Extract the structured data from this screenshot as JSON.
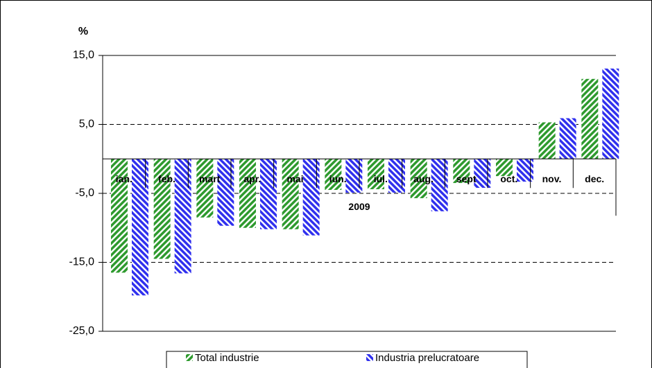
{
  "chart_data": {
    "type": "bar",
    "y_label": "%",
    "x_label": "2009",
    "categories": [
      "ian.",
      "feb.",
      "mart",
      "apr.",
      "mai",
      "iun.",
      "iul.",
      "aug.",
      "sept",
      "oct.",
      "nov.",
      "dec."
    ],
    "series": [
      {
        "name": "Total industrie",
        "color": "#2e9a2e",
        "values": [
          -16.5,
          -14.5,
          -8.5,
          -10.0,
          -10.2,
          -4.5,
          -4.4,
          -5.7,
          -3.5,
          -2.5,
          5.3,
          11.6
        ]
      },
      {
        "name": "Industria prelucratoare",
        "color": "#3030ee",
        "values": [
          -19.8,
          -16.6,
          -9.7,
          -10.2,
          -11.1,
          -4.9,
          -4.9,
          -7.6,
          -4.2,
          -3.3,
          5.9,
          13.1
        ]
      }
    ],
    "ylim": [
      -25,
      15
    ],
    "yticks": [
      {
        "value": 15,
        "label": "15,0"
      },
      {
        "value": 5,
        "label": "5,0"
      },
      {
        "value": -5,
        "label": "-5,0"
      },
      {
        "value": -15,
        "label": "-15,0"
      },
      {
        "value": -25,
        "label": "-25,0"
      }
    ],
    "grid": true,
    "legend": "bottom"
  }
}
